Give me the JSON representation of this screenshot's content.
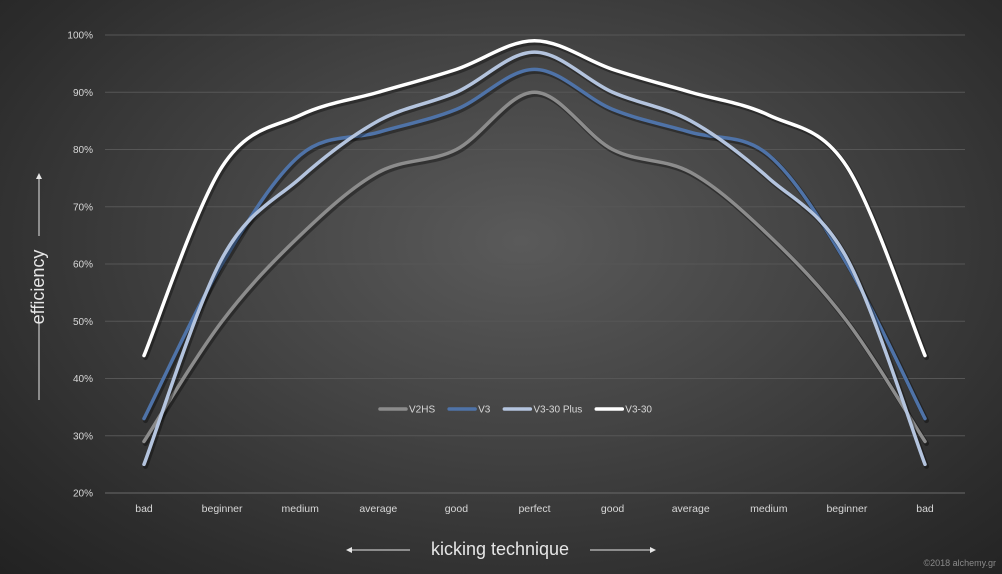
{
  "chart_data": {
    "type": "line",
    "title": "",
    "xlabel": "kicking technique",
    "ylabel": "efficiency",
    "categories": [
      "bad",
      "beginner",
      "medium",
      "average",
      "good",
      "perfect",
      "good",
      "average",
      "medium",
      "beginner",
      "bad"
    ],
    "ylim": [
      20,
      100
    ],
    "yticks": [
      "20%",
      "30%",
      "40%",
      "50%",
      "60%",
      "70%",
      "80%",
      "90%",
      "100%"
    ],
    "grid": true,
    "legend_position": "center",
    "smooth": true,
    "series": [
      {
        "name": "V2HS",
        "color": "#8c8c8c",
        "values": [
          29,
          50,
          65,
          76,
          80,
          90,
          80,
          76,
          65,
          50,
          29
        ]
      },
      {
        "name": "V3",
        "color": "#4f73a8",
        "values": [
          33,
          60,
          79,
          83,
          87,
          94,
          87,
          83,
          79,
          60,
          33
        ]
      },
      {
        "name": "V3-30 Plus",
        "color": "#b4c4de",
        "values": [
          25,
          61,
          75,
          85,
          90,
          97,
          90,
          85,
          75,
          61,
          25
        ]
      },
      {
        "name": "V3-30",
        "color": "#ffffff",
        "values": [
          44,
          77,
          86,
          90,
          94,
          99,
          94,
          90,
          86,
          77,
          44
        ]
      }
    ],
    "credit": "©2018 alchemy.gr"
  }
}
